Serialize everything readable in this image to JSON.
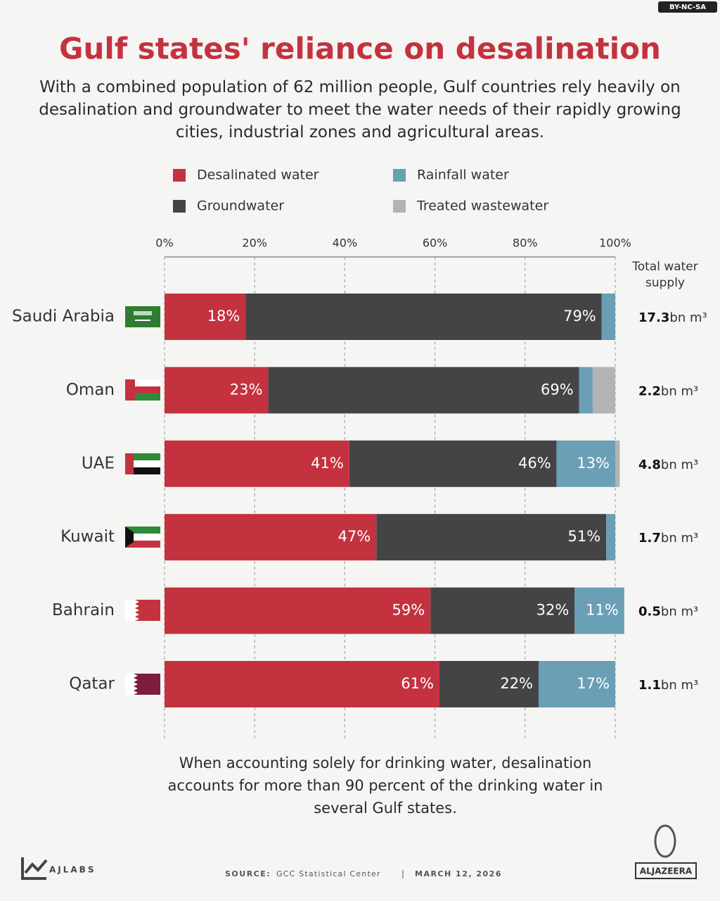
{
  "chart_data": {
    "type": "stacked-bar-horizontal",
    "title": "Gulf states' reliance on desalination",
    "subtitle": "With a combined population of 62 million people, Gulf countries rely heavily on desalination and groundwater to meet the water needs of their rapidly growing cities, industrial zones and agricultural areas.",
    "categories": [
      "Saudi Arabia",
      "Oman",
      "UAE",
      "Kuwait",
      "Bahrain",
      "Qatar"
    ],
    "series": [
      {
        "name": "Desalinated water",
        "color": "#c4323f",
        "values": [
          18,
          23,
          41,
          47,
          59,
          61
        ],
        "value_labels": [
          "18%",
          "23%",
          "41%",
          "47%",
          "59%",
          "61%"
        ]
      },
      {
        "name": "Groundwater",
        "color": "#444446",
        "values": [
          79,
          69,
          46,
          51,
          32,
          22
        ],
        "value_labels": [
          "79%",
          "69%",
          "46%",
          "51%",
          "32%",
          "22%"
        ]
      },
      {
        "name": "Rainfall water",
        "color": "#6a9fb5",
        "values": [
          3,
          3,
          13,
          2,
          11,
          17
        ],
        "value_labels": [
          null,
          null,
          "13%",
          null,
          "11%",
          "17%"
        ]
      },
      {
        "name": "Treated wastewater",
        "color": "#b3b3b3",
        "values": [
          null,
          5,
          1,
          null,
          null,
          null
        ],
        "value_labels": [
          null,
          null,
          null,
          null,
          null,
          null
        ]
      }
    ],
    "xlim": [
      0,
      100
    ],
    "xticks": [
      {
        "value": 0,
        "label": "0%"
      },
      {
        "value": 20,
        "label": "20%"
      },
      {
        "value": 40,
        "label": "40%"
      },
      {
        "value": 60,
        "label": "60%"
      },
      {
        "value": 80,
        "label": "80%"
      },
      {
        "value": 100,
        "label": "100%"
      }
    ],
    "grid": true,
    "totals": {
      "title": "Total water supply",
      "values": [
        17.3,
        2.2,
        4.8,
        1.7,
        0.5,
        1.1
      ],
      "unit": "bn m³"
    },
    "note": "When accounting solely for drinking water, desalination accounts for more than 90 percent of the drinking water in several Gulf states.",
    "source_label": "SOURCE:",
    "source": "GCC Statistical Center",
    "date": "MARCH 12, 2026",
    "credits": {
      "lab": "AJLABS",
      "brand": "ALJAZEERA",
      "license": "BY-NC-SA"
    }
  }
}
